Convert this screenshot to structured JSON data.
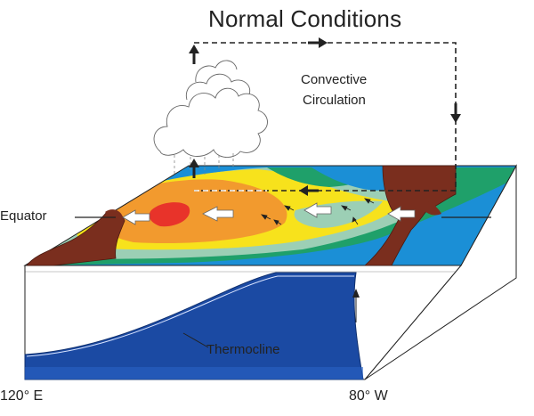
{
  "title": "Normal Conditions",
  "circulation_label": {
    "line1": "Convective",
    "line2": "Circulation"
  },
  "labels": {
    "equator": "Equator",
    "thermocline": "Thermocline",
    "west_longitude": "120° E",
    "east_longitude": "80° W"
  },
  "colors": {
    "warm_pool": "#e8332a",
    "warm": "#f29a2e",
    "mild": "#f7e21c",
    "cool": "#9ccfb5",
    "cooler": "#1fa06a",
    "cold": "#1b8fd6",
    "land": "#7a2e1e",
    "thermocline_water": "#1b4aa3"
  }
}
